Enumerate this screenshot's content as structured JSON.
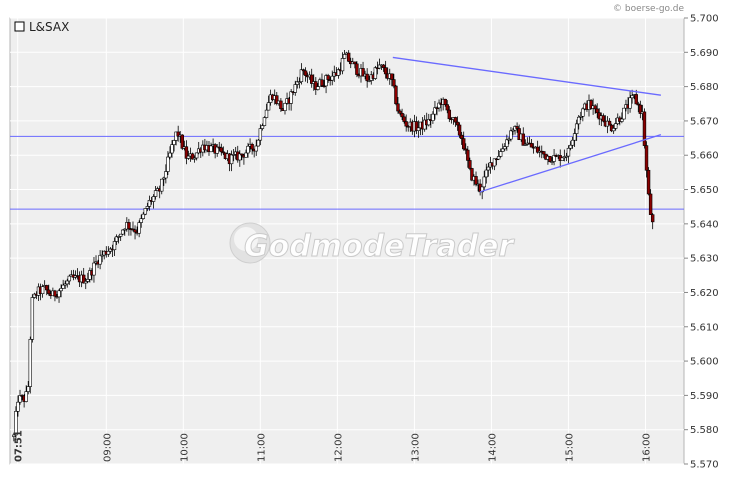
{
  "copyright": "© boerse-go.de",
  "watermark": "GodmodeTrader",
  "chart_data": {
    "type": "candlestick",
    "legend": "L&SAX",
    "legend_placement": "top-left",
    "ylim": [
      5.57,
      5.7
    ],
    "yticks": [
      "5.700",
      "5.690",
      "5.680",
      "5.670",
      "5.660",
      "5.650",
      "5.640",
      "5.630",
      "5.620",
      "5.610",
      "5.600",
      "5.590",
      "5.580",
      "5.570"
    ],
    "grid": true,
    "x_range_hours": [
      7.75,
      16.5
    ],
    "xticks": [
      {
        "label": "07:51",
        "hour": 7.85,
        "bold": true
      },
      {
        "label": "09:00",
        "hour": 9.0
      },
      {
        "label": "10:00",
        "hour": 10.0
      },
      {
        "label": "11:00",
        "hour": 11.0
      },
      {
        "label": "12:00",
        "hour": 12.0
      },
      {
        "label": "13:00",
        "hour": 13.0
      },
      {
        "label": "14:00",
        "hour": 14.0
      },
      {
        "label": "15:00",
        "hour": 15.0
      },
      {
        "label": "16:00",
        "hour": 16.0
      }
    ],
    "path": [
      [
        7.8,
        5.578
      ],
      [
        7.85,
        5.589
      ],
      [
        7.95,
        5.589
      ],
      [
        7.99,
        5.593
      ],
      [
        8.03,
        5.617
      ],
      [
        8.1,
        5.62
      ],
      [
        8.2,
        5.621
      ],
      [
        8.3,
        5.619
      ],
      [
        8.4,
        5.621
      ],
      [
        8.55,
        5.624
      ],
      [
        8.75,
        5.624
      ],
      [
        8.9,
        5.63
      ],
      [
        9.1,
        5.634
      ],
      [
        9.25,
        5.64
      ],
      [
        9.4,
        5.638
      ],
      [
        9.55,
        5.646
      ],
      [
        9.7,
        5.65
      ],
      [
        9.85,
        5.662
      ],
      [
        9.92,
        5.667
      ],
      [
        10.05,
        5.659
      ],
      [
        10.15,
        5.66
      ],
      [
        10.25,
        5.663
      ],
      [
        10.45,
        5.661
      ],
      [
        10.6,
        5.659
      ],
      [
        10.75,
        5.66
      ],
      [
        10.95,
        5.663
      ],
      [
        11.05,
        5.672
      ],
      [
        11.15,
        5.678
      ],
      [
        11.3,
        5.673
      ],
      [
        11.45,
        5.68
      ],
      [
        11.55,
        5.685
      ],
      [
        11.7,
        5.68
      ],
      [
        11.85,
        5.682
      ],
      [
        12.0,
        5.684
      ],
      [
        12.1,
        5.689
      ],
      [
        12.25,
        5.685
      ],
      [
        12.4,
        5.682
      ],
      [
        12.55,
        5.686
      ],
      [
        12.7,
        5.682
      ],
      [
        12.8,
        5.672
      ],
      [
        12.9,
        5.669
      ],
      [
        13.05,
        5.668
      ],
      [
        13.2,
        5.67
      ],
      [
        13.35,
        5.676
      ],
      [
        13.5,
        5.67
      ],
      [
        13.62,
        5.665
      ],
      [
        13.72,
        5.655
      ],
      [
        13.85,
        5.65
      ],
      [
        14.0,
        5.658
      ],
      [
        14.12,
        5.661
      ],
      [
        14.28,
        5.668
      ],
      [
        14.42,
        5.664
      ],
      [
        14.55,
        5.662
      ],
      [
        14.7,
        5.66
      ],
      [
        14.85,
        5.659
      ],
      [
        15.0,
        5.661
      ],
      [
        15.12,
        5.671
      ],
      [
        15.25,
        5.675
      ],
      [
        15.4,
        5.672
      ],
      [
        15.55,
        5.668
      ],
      [
        15.7,
        5.672
      ],
      [
        15.85,
        5.677
      ],
      [
        15.96,
        5.672
      ],
      [
        16.0,
        5.659
      ],
      [
        16.05,
        5.645
      ],
      [
        16.1,
        5.639
      ]
    ],
    "horizontal_lines": [
      5.6655,
      5.6443
    ],
    "trend_lines": [
      {
        "from": [
          12.72,
          5.6885
        ],
        "to": [
          16.2,
          5.6775
        ]
      },
      {
        "from": [
          13.85,
          5.6493
        ],
        "to": [
          16.2,
          5.666
        ]
      }
    ],
    "colors": {
      "plot_background": "#efefef",
      "up_candle": "#ffffff",
      "down_candle": "#8b0000",
      "candle_outline": "#000000",
      "grid": "#ffffff",
      "trend_line": "#6a6aff"
    }
  }
}
